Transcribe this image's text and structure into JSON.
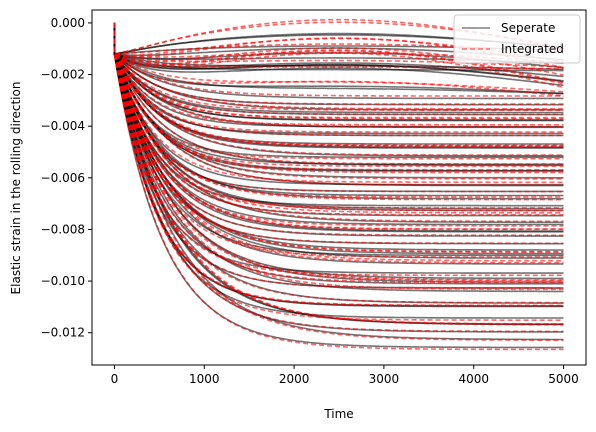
{
  "chart_data": {
    "type": "line",
    "title": "",
    "xlabel": "Time",
    "ylabel": "Elastic strain in the rolling direction",
    "xlim": [
      -250,
      5250
    ],
    "ylim": [
      -0.01325,
      0.0005
    ],
    "xticks": [
      0,
      1000,
      2000,
      3000,
      4000,
      5000
    ],
    "xtick_labels": [
      "0",
      "1000",
      "2000",
      "3000",
      "4000",
      "5000"
    ],
    "yticks": [
      0.0,
      -0.002,
      -0.004,
      -0.006,
      -0.008,
      -0.01,
      -0.012
    ],
    "ytick_labels": [
      "0.000",
      "−0.002",
      "−0.004",
      "−0.006",
      "−0.008",
      "−0.010",
      "−0.012"
    ],
    "grid": false,
    "legend": {
      "position": "top-right",
      "entries": [
        {
          "label": "Seperate",
          "color": "#808080",
          "style": "solid"
        },
        {
          "label": "Integrated",
          "color": "#ff6b6b",
          "style": "dashed"
        }
      ]
    },
    "colors": {
      "seperate": "#000000",
      "integrated": "#ff0000"
    },
    "series_description": {
      "count_per_group_approx": 70,
      "initial_drop_at_t0": -0.0012,
      "final_values_range": [
        -0.0126,
        -0.0025
      ]
    },
    "series": [
      {
        "name": "Seperate",
        "x": [
          0,
          250,
          500,
          1000,
          2000,
          3000,
          4000,
          5000
        ],
        "values": [
          0,
          -0.0045,
          -0.0075,
          -0.0105,
          -0.0123,
          -0.0126,
          -0.0126,
          -0.0126
        ]
      },
      {
        "name": "Seperate",
        "x": [
          0,
          250,
          500,
          1000,
          2000,
          3000,
          4000,
          5000
        ],
        "values": [
          0,
          -0.0035,
          -0.0052,
          -0.0065,
          -0.0075,
          -0.0078,
          -0.0079,
          -0.008
        ]
      },
      {
        "name": "Seperate",
        "x": [
          0,
          250,
          500,
          1000,
          2000,
          3000,
          4000,
          5000
        ],
        "values": [
          0,
          -0.0025,
          -0.0031,
          -0.0037,
          -0.0042,
          -0.0044,
          -0.0045,
          -0.0046
        ]
      },
      {
        "name": "Integrated",
        "x": [
          0,
          250,
          500,
          1000,
          2000,
          3000,
          4000,
          5000
        ],
        "values": [
          0,
          -0.0044,
          -0.0074,
          -0.0104,
          -0.0122,
          -0.0125,
          -0.0126,
          -0.0126
        ]
      },
      {
        "name": "Integrated",
        "x": [
          0,
          250,
          500,
          1000,
          2000,
          3000,
          4000,
          5000
        ],
        "values": [
          0,
          -0.0024,
          -0.0029,
          -0.0033,
          -0.0031,
          -0.0029,
          -0.0027,
          -0.0025
        ]
      }
    ]
  }
}
